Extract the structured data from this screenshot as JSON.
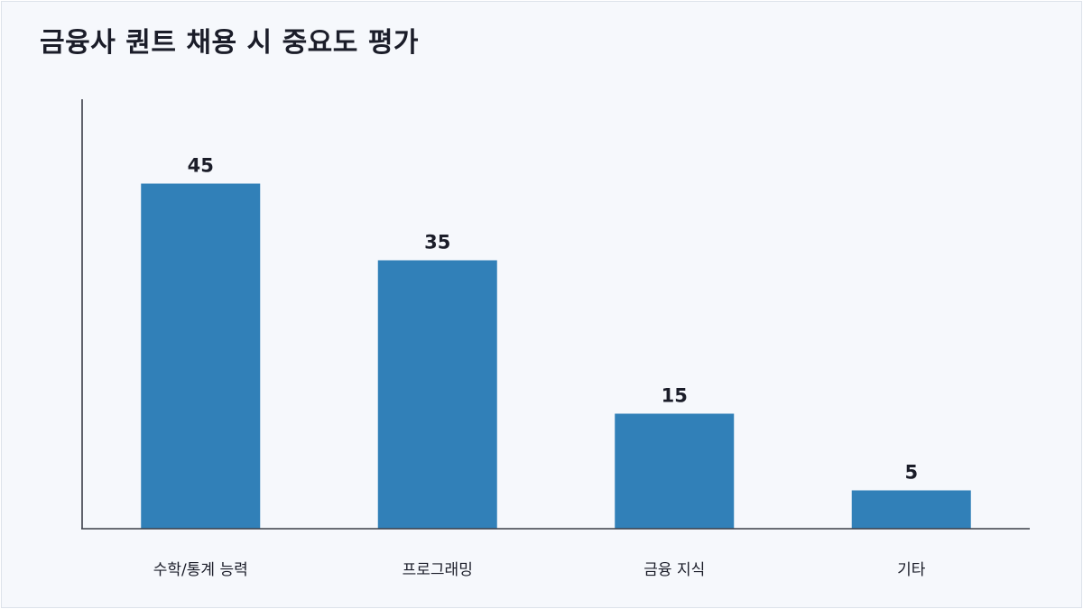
{
  "title": "금융사 퀀트 채용 시 중요도 평가",
  "chart_data": {
    "type": "bar",
    "title": "금융사 퀀트 채용 시 중요도 평가",
    "categories": [
      "수학/통계 능력",
      "프로그래밍",
      "금융 지식",
      "기타"
    ],
    "values": [
      45,
      35,
      15,
      5
    ],
    "xlabel": "",
    "ylabel": "",
    "ylim": [
      0,
      56
    ],
    "grid": false,
    "legend": "none",
    "bar_color": "#3180b8"
  }
}
